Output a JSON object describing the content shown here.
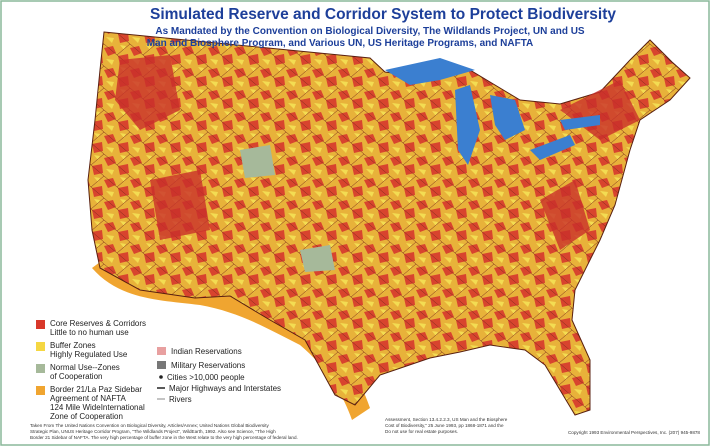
{
  "header": {
    "title": "Simulated Reserve and Corridor System to Protect Biodiversity",
    "subtitle": [
      "As Mandated by the Convention on  Biological Diversity, The Wildlands Project, UN and US",
      "Man and Biosphere Program, and Various UN, US Heritage Programs, and NAFTA"
    ]
  },
  "legend": {
    "items": [
      {
        "lines": [
          "Core Reserves & Corridors",
          "Little to no human use"
        ]
      },
      {
        "lines": [
          "Buffer Zones",
          "Highly Regulated Use"
        ]
      },
      {
        "lines": [
          "Normal Use--Zones",
          "of Cooperation"
        ]
      },
      {
        "lines": [
          "Border 21/La Paz Sidebar",
          "Agreement of NAFTA",
          "124 Mile WideInternational",
          "Zone of Cooperation"
        ]
      }
    ]
  },
  "legend2": {
    "items": [
      "Indian Reservations",
      "Military Reservations",
      "Cities >10,000 people",
      "Major Highways and Interstates",
      "Rivers"
    ]
  },
  "footer": {
    "left": [
      "Taken From The United Nations Convention on Biological Diversity, Articles/Annex; United Nations Global Biodiversity",
      "Strategic Plan, UNUS Heritage Corridor Program, \"The Wildlands Project\", WildEarth, 1992. Also see Science, \"The High",
      "Border 21 Sidebar of NAFTA. The very high percentage of buffer zone in the West relate to the very high percentage of federal land."
    ],
    "right": [
      "Assessment, Section 13.4.2.2.3, US Man and the Biosphere",
      "Cost of Biodiversity,\" 25 June 1993, pp 1868-1871 and the",
      "Do not use for real estate purposes."
    ],
    "copyright": "Copyright 1993 Environmental Perspectives, Inc. (207) 945-9878"
  }
}
